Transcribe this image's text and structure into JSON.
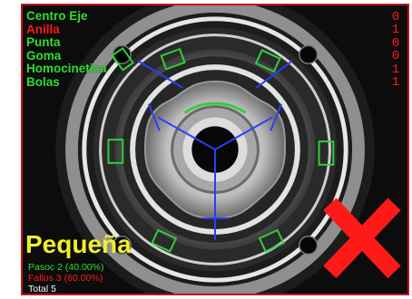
{
  "colors": {
    "ok": "#2ee02e",
    "fail": "#ff1a1a",
    "title": "#f2ef2a",
    "frame": "#c4141a",
    "overlay_blue": "#2a3dff",
    "contour_green": "#2ecf3a",
    "white": "#ffffff"
  },
  "inspection_items": [
    {
      "label": "Centro Eje",
      "state": "ok"
    },
    {
      "label": "Anilla",
      "state": "fail"
    },
    {
      "label": "Punta",
      "state": "ok"
    },
    {
      "label": "Goma",
      "state": "ok"
    },
    {
      "label": "Homocinetica",
      "state": "ok"
    },
    {
      "label": "Bolas",
      "state": "ok"
    }
  ],
  "code_digits": [
    "0",
    "1",
    "0",
    "0",
    "1",
    "1"
  ],
  "result_title": "Pequeña",
  "stats": {
    "passed": "Pasoc 2 (40.00%)",
    "failed": "Fallos 3 (60.00%)",
    "total": "Total 5"
  },
  "result_icon": "fail-x-icon"
}
